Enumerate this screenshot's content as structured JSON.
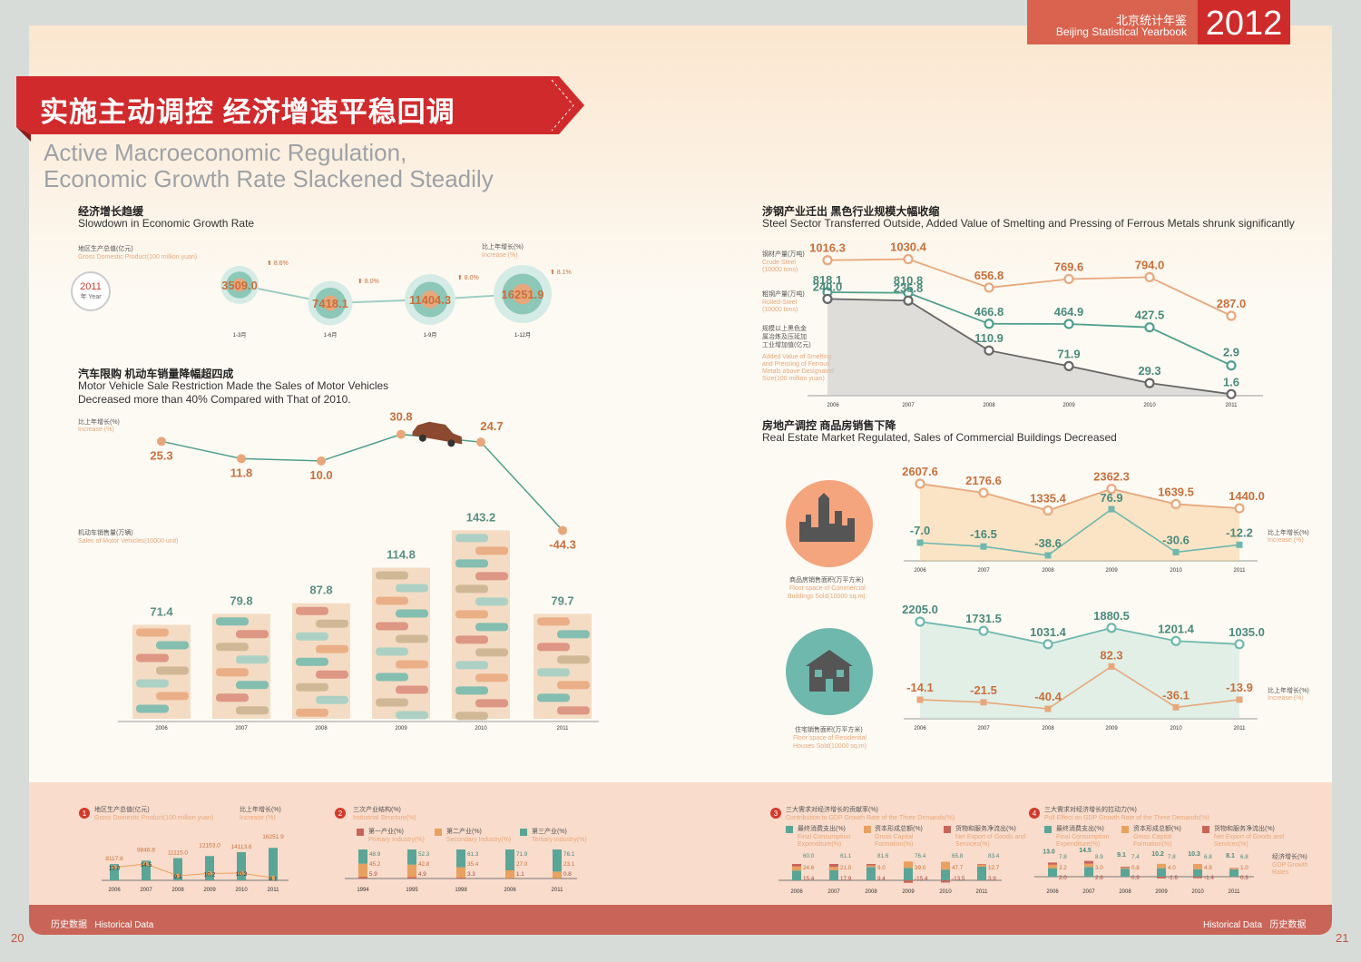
{
  "header": {
    "yearbook_cn": "北京统计年鉴",
    "yearbook_en": "Beijing Statistical Yearbook",
    "year": "2012"
  },
  "title": {
    "cn": "实施主动调控 经济增速平稳回调",
    "en_line1": "Active Macroeconomic Regulation,",
    "en_line2": "Economic Growth Rate Slackened Steadily"
  },
  "gdp_section": {
    "cn": "经济增长趋缓",
    "en": "Slowdown in Economic Growth Rate",
    "gdp_label_cn": "地区生产总值(亿元)",
    "gdp_label_en": "Gross Domestic Product(100 million yuan)",
    "inc_label_cn": "比上年增长(%)",
    "inc_label_en": "Increase (%)",
    "seal_year": "2011",
    "seal_text": "年 Year"
  },
  "vehicle_section": {
    "cn": "汽车限购 机动车销量降幅超四成",
    "en_line1": "Motor Vehicle Sale Restriction Made the Sales of Motor Vehicles",
    "en_line2": "Decreased more than 40% Compared with That of 2010.",
    "inc_label_cn": "比上年增长(%)",
    "inc_label_en": "Increase (%)",
    "sales_label_cn": "机动车销售量(万辆)",
    "sales_label_en": "Sales of Motor Vehicles(10000 unit)"
  },
  "steel_section": {
    "cn": "涉钢产业迁出 黑色行业规模大幅收缩",
    "en": "Steel Sector Transferred Outside, Added Value of Smelting and Pressing of Ferrous Metals shrunk significantly",
    "crude_cn": "钢材产量(万吨)",
    "crude_en1": "Crude Steel",
    "crude_en2": "(10000 tons)",
    "rolled_cn": "粗钢产量(万吨)",
    "rolled_en1": "Rolled-Steel",
    "rolled_en2": "(10000 tons)",
    "added_cn1": "规模以上黑色金",
    "added_cn2": "属冶炼及压延加",
    "added_cn3": "工业增加值(亿元)",
    "added_en1": "Added Value of Smelting",
    "added_en2": "and Pressing of Ferrous",
    "added_en3": "Metals above Designated",
    "added_en4": "Size(100 million yuan)"
  },
  "realestate_section": {
    "cn": "房地产调控  商品房销售下降",
    "en": "Real Estate Market Regulated, Sales of Commercial Buildings Decreased",
    "comm_cn": "商品房销售面积(万平方米)",
    "comm_en1": "Floor space of Commercial",
    "comm_en2": "Buildings Sold(10000 sq.m)",
    "resi_cn": "住宅销售面积(万平方米)",
    "resi_en1": "Floor space of Residential",
    "resi_en2": "Houses Sold(10000 sq.m)",
    "inc_cn": "比上年增长(%)",
    "inc_en": "Increase (%)"
  },
  "footer": {
    "hist_cn": "历史数据",
    "hist_en": "Historical Data",
    "page_left": "20",
    "page_right": "21",
    "p1_num": "1",
    "p1_cn": "地区生产总值(亿元)",
    "p1_en": "Gross Domestic Product(100 million yuan)",
    "p1_inc_cn": "比上年增长(%)",
    "p1_inc_en": "Increase (%)",
    "p2_num": "2",
    "p2_cn": "三次产业结构(%)",
    "p2_en": "Industrial Structure(%)",
    "p2_a_cn": "第一产业(%)",
    "p2_a_en": "Primary Industry(%)",
    "p2_b_cn": "第二产业(%)",
    "p2_b_en": "Secondary Industry(%)",
    "p2_c_cn": "第三产业(%)",
    "p2_c_en": "Tertiary Industry(%)",
    "p3_num": "3",
    "p3_cn": "三大需求对经济增长的贡献率(%)",
    "p3_en": "Contribution to GDP Growth Rate of the Three Demands(%)",
    "p4_num": "4",
    "p4_cn": "三大需求对经济增长的拉动力(%)",
    "p4_en": "Pull Effect on GDP Growth Rate of the Three Demands(%)",
    "d_a_cn": "最终消费支出(%)",
    "d_a_en1": "Final Consumption",
    "d_a_en2": "Expenditure(%)",
    "d_b_cn": "资本形成总额(%)",
    "d_b_en1": "Gross Capital",
    "d_b_en2": "Formation(%)",
    "d_c_cn": "货物和服务净流出(%)",
    "d_c_en1": "Net Export of Goods and",
    "d_c_en2": "Services(%)",
    "p4_rate_cn": "经济增长(%)",
    "p4_rate_en1": "GDP Growth",
    "p4_rate_en2": "Rates"
  },
  "colors": {
    "red": "#cf2b2b",
    "orange": "#e8a77b",
    "teal": "#4f9f8c",
    "gray": "#666666",
    "footer": "#f9dccb"
  },
  "icons": [
    "car-icon",
    "city-skyline-icon",
    "house-icon"
  ],
  "chart_data": [
    {
      "id": "gdp_2011",
      "type": "bubble",
      "categories": [
        "1-3月",
        "1-6月",
        "1-9月",
        "1-12月"
      ],
      "values": [
        3509.0,
        7418.1,
        11404.3,
        16251.9
      ],
      "growth": [
        "8.6%",
        "8.0%",
        "8.0%",
        "8.1%"
      ]
    },
    {
      "id": "vehicles",
      "type": "bar",
      "categories": [
        "2006",
        "2007",
        "2008",
        "2009",
        "2010",
        "2011"
      ],
      "values": [
        71.4,
        79.8,
        87.8,
        114.8,
        143.2,
        79.7
      ],
      "increase": [
        25.3,
        11.8,
        10.0,
        30.8,
        24.7,
        -44.3
      ]
    },
    {
      "id": "steel",
      "type": "line",
      "x": [
        "2006",
        "2007",
        "2008",
        "2009",
        "2010",
        "2011"
      ],
      "series": [
        {
          "key": "crude",
          "values": [
            1016.3,
            1030.4,
            656.8,
            769.6,
            794.0,
            287.0
          ]
        },
        {
          "key": "rolled",
          "values": [
            818.1,
            810.8,
            466.8,
            464.9,
            427.5,
            2.9
          ]
        },
        {
          "key": "added",
          "values": [
            240.0,
            235.8,
            110.9,
            71.9,
            29.3,
            1.6
          ]
        }
      ]
    },
    {
      "id": "commercial",
      "type": "area",
      "x": [
        "2006",
        "2007",
        "2008",
        "2009",
        "2010",
        "2011"
      ],
      "values": [
        2607.6,
        2176.6,
        1335.4,
        2362.3,
        1639.5,
        1440.0
      ],
      "increase": [
        -7.0,
        -16.5,
        -38.6,
        76.9,
        -30.6,
        -12.2
      ]
    },
    {
      "id": "residential",
      "type": "area",
      "x": [
        "2006",
        "2007",
        "2008",
        "2009",
        "2010",
        "2011"
      ],
      "values": [
        2205.0,
        1731.5,
        1031.4,
        1880.5,
        1201.4,
        1035.0
      ],
      "increase": [
        -14.1,
        -21.5,
        -40.4,
        82.3,
        -36.1,
        -13.9
      ]
    },
    {
      "id": "hist_gdp",
      "type": "bar",
      "x": [
        "2006",
        "2007",
        "2008",
        "2009",
        "2010",
        "2011"
      ],
      "values": [
        8117.8,
        9846.8,
        11115.0,
        12153.0,
        14113.6,
        16251.9
      ],
      "increase": [
        13.0,
        14.5,
        9.1,
        10.2,
        10.3,
        8.1
      ]
    },
    {
      "id": "hist_structure",
      "type": "stacked_bar",
      "x": [
        "1994",
        "1995",
        "1998",
        "2006",
        "2011"
      ],
      "series": [
        {
          "key": "primary",
          "values": [
            5.9,
            4.9,
            3.3,
            1.1,
            0.8
          ]
        },
        {
          "key": "secondary",
          "values": [
            45.2,
            42.8,
            35.4,
            27.0,
            23.1
          ]
        },
        {
          "key": "tertiary",
          "values": [
            48.9,
            52.3,
            61.3,
            71.9,
            76.1
          ]
        }
      ]
    },
    {
      "id": "hist_contribution",
      "type": "stacked_bar",
      "x": [
        "2006",
        "2007",
        "2008",
        "2009",
        "2010",
        "2011"
      ],
      "series": [
        {
          "key": "consumption",
          "values": [
            60.0,
            61.1,
            81.6,
            76.4,
            65.8,
            83.4
          ]
        },
        {
          "key": "capital",
          "values": [
            24.6,
            21.0,
            9.0,
            39.0,
            47.7,
            12.7
          ]
        },
        {
          "key": "netexport",
          "values": [
            15.4,
            17.9,
            9.4,
            -15.4,
            -13.5,
            3.9
          ]
        }
      ]
    },
    {
      "id": "hist_pull",
      "type": "stacked_bar",
      "x": [
        "2006",
        "2007",
        "2008",
        "2009",
        "2010",
        "2011"
      ],
      "growth": [
        13.0,
        14.5,
        9.1,
        10.2,
        10.3,
        8.1
      ],
      "series": [
        {
          "key": "consumption",
          "values": [
            7.8,
            8.9,
            7.4,
            7.8,
            6.8,
            6.8
          ]
        },
        {
          "key": "capital",
          "values": [
            3.2,
            3.0,
            0.8,
            4.0,
            4.9,
            1.0
          ]
        },
        {
          "key": "netexport",
          "values": [
            2.0,
            2.6,
            0.9,
            -1.6,
            -1.4,
            0.3
          ]
        }
      ]
    }
  ]
}
